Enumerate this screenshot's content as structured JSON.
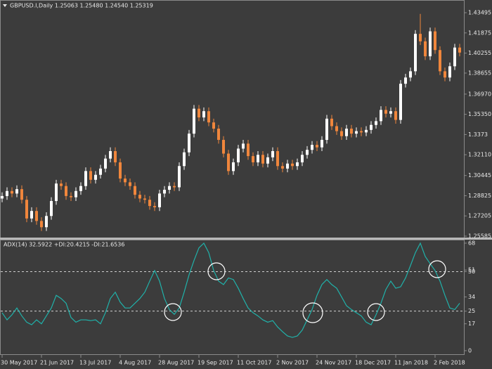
{
  "chart_data": [
    {
      "type": "candlestick",
      "title": "GBPUSD.I,Daily  1.25063 1.25480 1.24540 1.25319",
      "categories": [
        "30 May 2017",
        null,
        null,
        null,
        null,
        null,
        null,
        null,
        "21 Jun 2017",
        null,
        null,
        null,
        null,
        null,
        null,
        null,
        "13 Jul 2017",
        null,
        null,
        null,
        null,
        null,
        null,
        null,
        "4 Aug 2017",
        null,
        null,
        null,
        null,
        null,
        null,
        null,
        "28 Aug 2017",
        null,
        null,
        null,
        null,
        null,
        null,
        null,
        "19 Sep 2017",
        null,
        null,
        null,
        null,
        null,
        null,
        null,
        "11 Oct 2017",
        null,
        null,
        null,
        null,
        null,
        null,
        null,
        "2 Nov 2017",
        null,
        null,
        null,
        null,
        null,
        null,
        null,
        "24 Nov 2017",
        null,
        null,
        null,
        null,
        null,
        null,
        null,
        "18 Dec 2017",
        null,
        null,
        null,
        null,
        null,
        null,
        null,
        "11 Jan 2018",
        null,
        null,
        null,
        null,
        null,
        null,
        null,
        "2 Feb 2018",
        null,
        null,
        null,
        null,
        null
      ],
      "open": [
        1.286,
        1.288,
        1.292,
        1.29,
        1.2935,
        1.285,
        1.27,
        1.276,
        1.268,
        1.263,
        1.272,
        1.284,
        1.298,
        1.296,
        1.288,
        1.287,
        1.292,
        1.296,
        1.308,
        1.301,
        1.305,
        1.31,
        1.318,
        1.324,
        1.315,
        1.302,
        1.299,
        1.296,
        1.289,
        1.286,
        1.285,
        1.28,
        1.279,
        1.29,
        1.293,
        1.296,
        1.295,
        1.312,
        1.323,
        1.338,
        1.358,
        1.351,
        1.356,
        1.347,
        1.342,
        1.333,
        1.322,
        1.308,
        1.315,
        1.326,
        1.33,
        1.32,
        1.315,
        1.321,
        1.314,
        1.319,
        1.324,
        1.312,
        1.31,
        1.314,
        1.312,
        1.315,
        1.321,
        1.325,
        1.329,
        1.327,
        1.333,
        1.35,
        1.344,
        1.34,
        1.336,
        1.342,
        1.338,
        1.34,
        1.339,
        1.341,
        1.345,
        1.348,
        1.357,
        1.354,
        1.356,
        1.349,
        1.378,
        1.383,
        1.388,
        1.418,
        1.412,
        1.4,
        1.42,
        1.405,
        1.388,
        1.383,
        1.392,
        1.407
      ],
      "high": [
        1.291,
        1.295,
        1.295,
        1.2965,
        1.2965,
        1.288,
        1.279,
        1.279,
        1.271,
        1.275,
        1.287,
        1.301,
        1.301,
        1.299,
        1.291,
        1.295,
        1.299,
        1.311,
        1.311,
        1.308,
        1.313,
        1.321,
        1.327,
        1.327,
        1.318,
        1.305,
        1.302,
        1.299,
        1.292,
        1.289,
        1.288,
        1.283,
        1.293,
        1.296,
        1.299,
        1.299,
        1.315,
        1.326,
        1.341,
        1.361,
        1.361,
        1.359,
        1.359,
        1.35,
        1.345,
        1.336,
        1.325,
        1.318,
        1.329,
        1.333,
        1.333,
        1.323,
        1.324,
        1.324,
        1.322,
        1.327,
        1.327,
        1.315,
        1.317,
        1.317,
        1.318,
        1.324,
        1.328,
        1.332,
        1.332,
        1.336,
        1.353,
        1.353,
        1.347,
        1.343,
        1.345,
        1.345,
        1.343,
        1.343,
        1.344,
        1.348,
        1.351,
        1.36,
        1.36,
        1.359,
        1.359,
        1.381,
        1.386,
        1.391,
        1.421,
        1.434,
        1.415,
        1.423,
        1.423,
        1.408,
        1.391,
        1.395,
        1.41,
        1.41
      ],
      "low": [
        1.283,
        1.285,
        1.287,
        1.287,
        1.282,
        1.267,
        1.267,
        1.265,
        1.26,
        1.26,
        1.269,
        1.281,
        1.293,
        1.285,
        1.284,
        1.284,
        1.289,
        1.293,
        1.298,
        1.298,
        1.302,
        1.307,
        1.315,
        1.312,
        1.299,
        1.296,
        1.293,
        1.286,
        1.283,
        1.282,
        1.277,
        1.276,
        1.276,
        1.287,
        1.29,
        1.292,
        1.292,
        1.309,
        1.32,
        1.335,
        1.348,
        1.348,
        1.344,
        1.339,
        1.33,
        1.319,
        1.305,
        1.305,
        1.312,
        1.323,
        1.317,
        1.312,
        1.312,
        1.311,
        1.311,
        1.316,
        1.309,
        1.307,
        1.307,
        1.309,
        1.309,
        1.312,
        1.318,
        1.322,
        1.324,
        1.324,
        1.33,
        1.341,
        1.337,
        1.333,
        1.333,
        1.335,
        1.335,
        1.336,
        1.336,
        1.338,
        1.342,
        1.345,
        1.351,
        1.351,
        1.346,
        1.346,
        1.375,
        1.38,
        1.385,
        1.409,
        1.397,
        1.397,
        1.402,
        1.385,
        1.38,
        1.38,
        1.389,
        1.4
      ],
      "close": [
        1.288,
        1.292,
        1.29,
        1.2935,
        1.285,
        1.27,
        1.276,
        1.268,
        1.263,
        1.272,
        1.284,
        1.298,
        1.296,
        1.288,
        1.287,
        1.292,
        1.296,
        1.308,
        1.301,
        1.305,
        1.31,
        1.318,
        1.324,
        1.315,
        1.302,
        1.299,
        1.296,
        1.289,
        1.286,
        1.285,
        1.28,
        1.279,
        1.29,
        1.293,
        1.296,
        1.295,
        1.312,
        1.323,
        1.338,
        1.358,
        1.351,
        1.356,
        1.347,
        1.342,
        1.333,
        1.322,
        1.308,
        1.315,
        1.326,
        1.33,
        1.32,
        1.315,
        1.321,
        1.314,
        1.319,
        1.324,
        1.312,
        1.31,
        1.314,
        1.312,
        1.315,
        1.321,
        1.325,
        1.329,
        1.327,
        1.333,
        1.35,
        1.344,
        1.34,
        1.336,
        1.342,
        1.338,
        1.34,
        1.339,
        1.341,
        1.345,
        1.348,
        1.357,
        1.354,
        1.356,
        1.349,
        1.378,
        1.383,
        1.388,
        1.418,
        1.412,
        1.4,
        1.42,
        1.405,
        1.388,
        1.383,
        1.392,
        1.407,
        1.403
      ],
      "up_color": "#ffffff",
      "down_color": "#f0863c",
      "ylim": [
        1.2547,
        1.444
      ],
      "yticks": [
        1.43495,
        1.41875,
        1.40255,
        1.38655,
        {
          "value": 1.3697,
          "label": "1.36970"
        },
        {
          "value": 1.3535,
          "label": "1.35350"
        },
        1.3373,
        {
          "value": 1.3211,
          "label": "1.32110"
        },
        1.30445,
        1.28825,
        1.27205,
        1.25585
      ]
    },
    {
      "type": "line",
      "title": "ADX(14) 32.5922 +DI:20.4215 -DI:21.6536",
      "values": [
        24,
        19.5,
        22.7,
        27,
        22,
        18,
        16.4,
        19.5,
        17,
        22,
        27,
        35,
        33,
        30,
        21,
        18,
        19.5,
        19.5,
        19,
        19.5,
        17,
        24,
        33,
        37,
        30.7,
        27,
        27,
        30,
        33,
        37,
        44,
        50.7,
        44,
        33,
        26,
        23,
        27,
        37,
        48,
        57,
        65,
        68,
        62,
        50.7,
        44,
        41.8,
        46,
        45,
        39.5,
        33,
        27,
        24,
        22,
        19.5,
        18,
        19,
        15,
        12,
        9.3,
        8.4,
        9.3,
        13,
        19.5,
        26,
        35,
        41.8,
        45,
        41.8,
        39.5,
        34,
        28.4,
        26,
        24,
        22,
        18,
        16.4,
        22.7,
        30,
        38.7,
        44,
        39.5,
        40.4,
        46,
        53.8,
        62,
        68,
        59.6,
        55,
        50.7,
        44,
        35,
        27,
        26,
        30
      ],
      "color": "#20b2aa",
      "levels": [
        25,
        50
      ],
      "ylim": [
        -2.7,
        70.2
      ],
      "yticks": [
        68,
        51,
        50,
        34,
        25,
        17,
        0
      ]
    }
  ]
}
